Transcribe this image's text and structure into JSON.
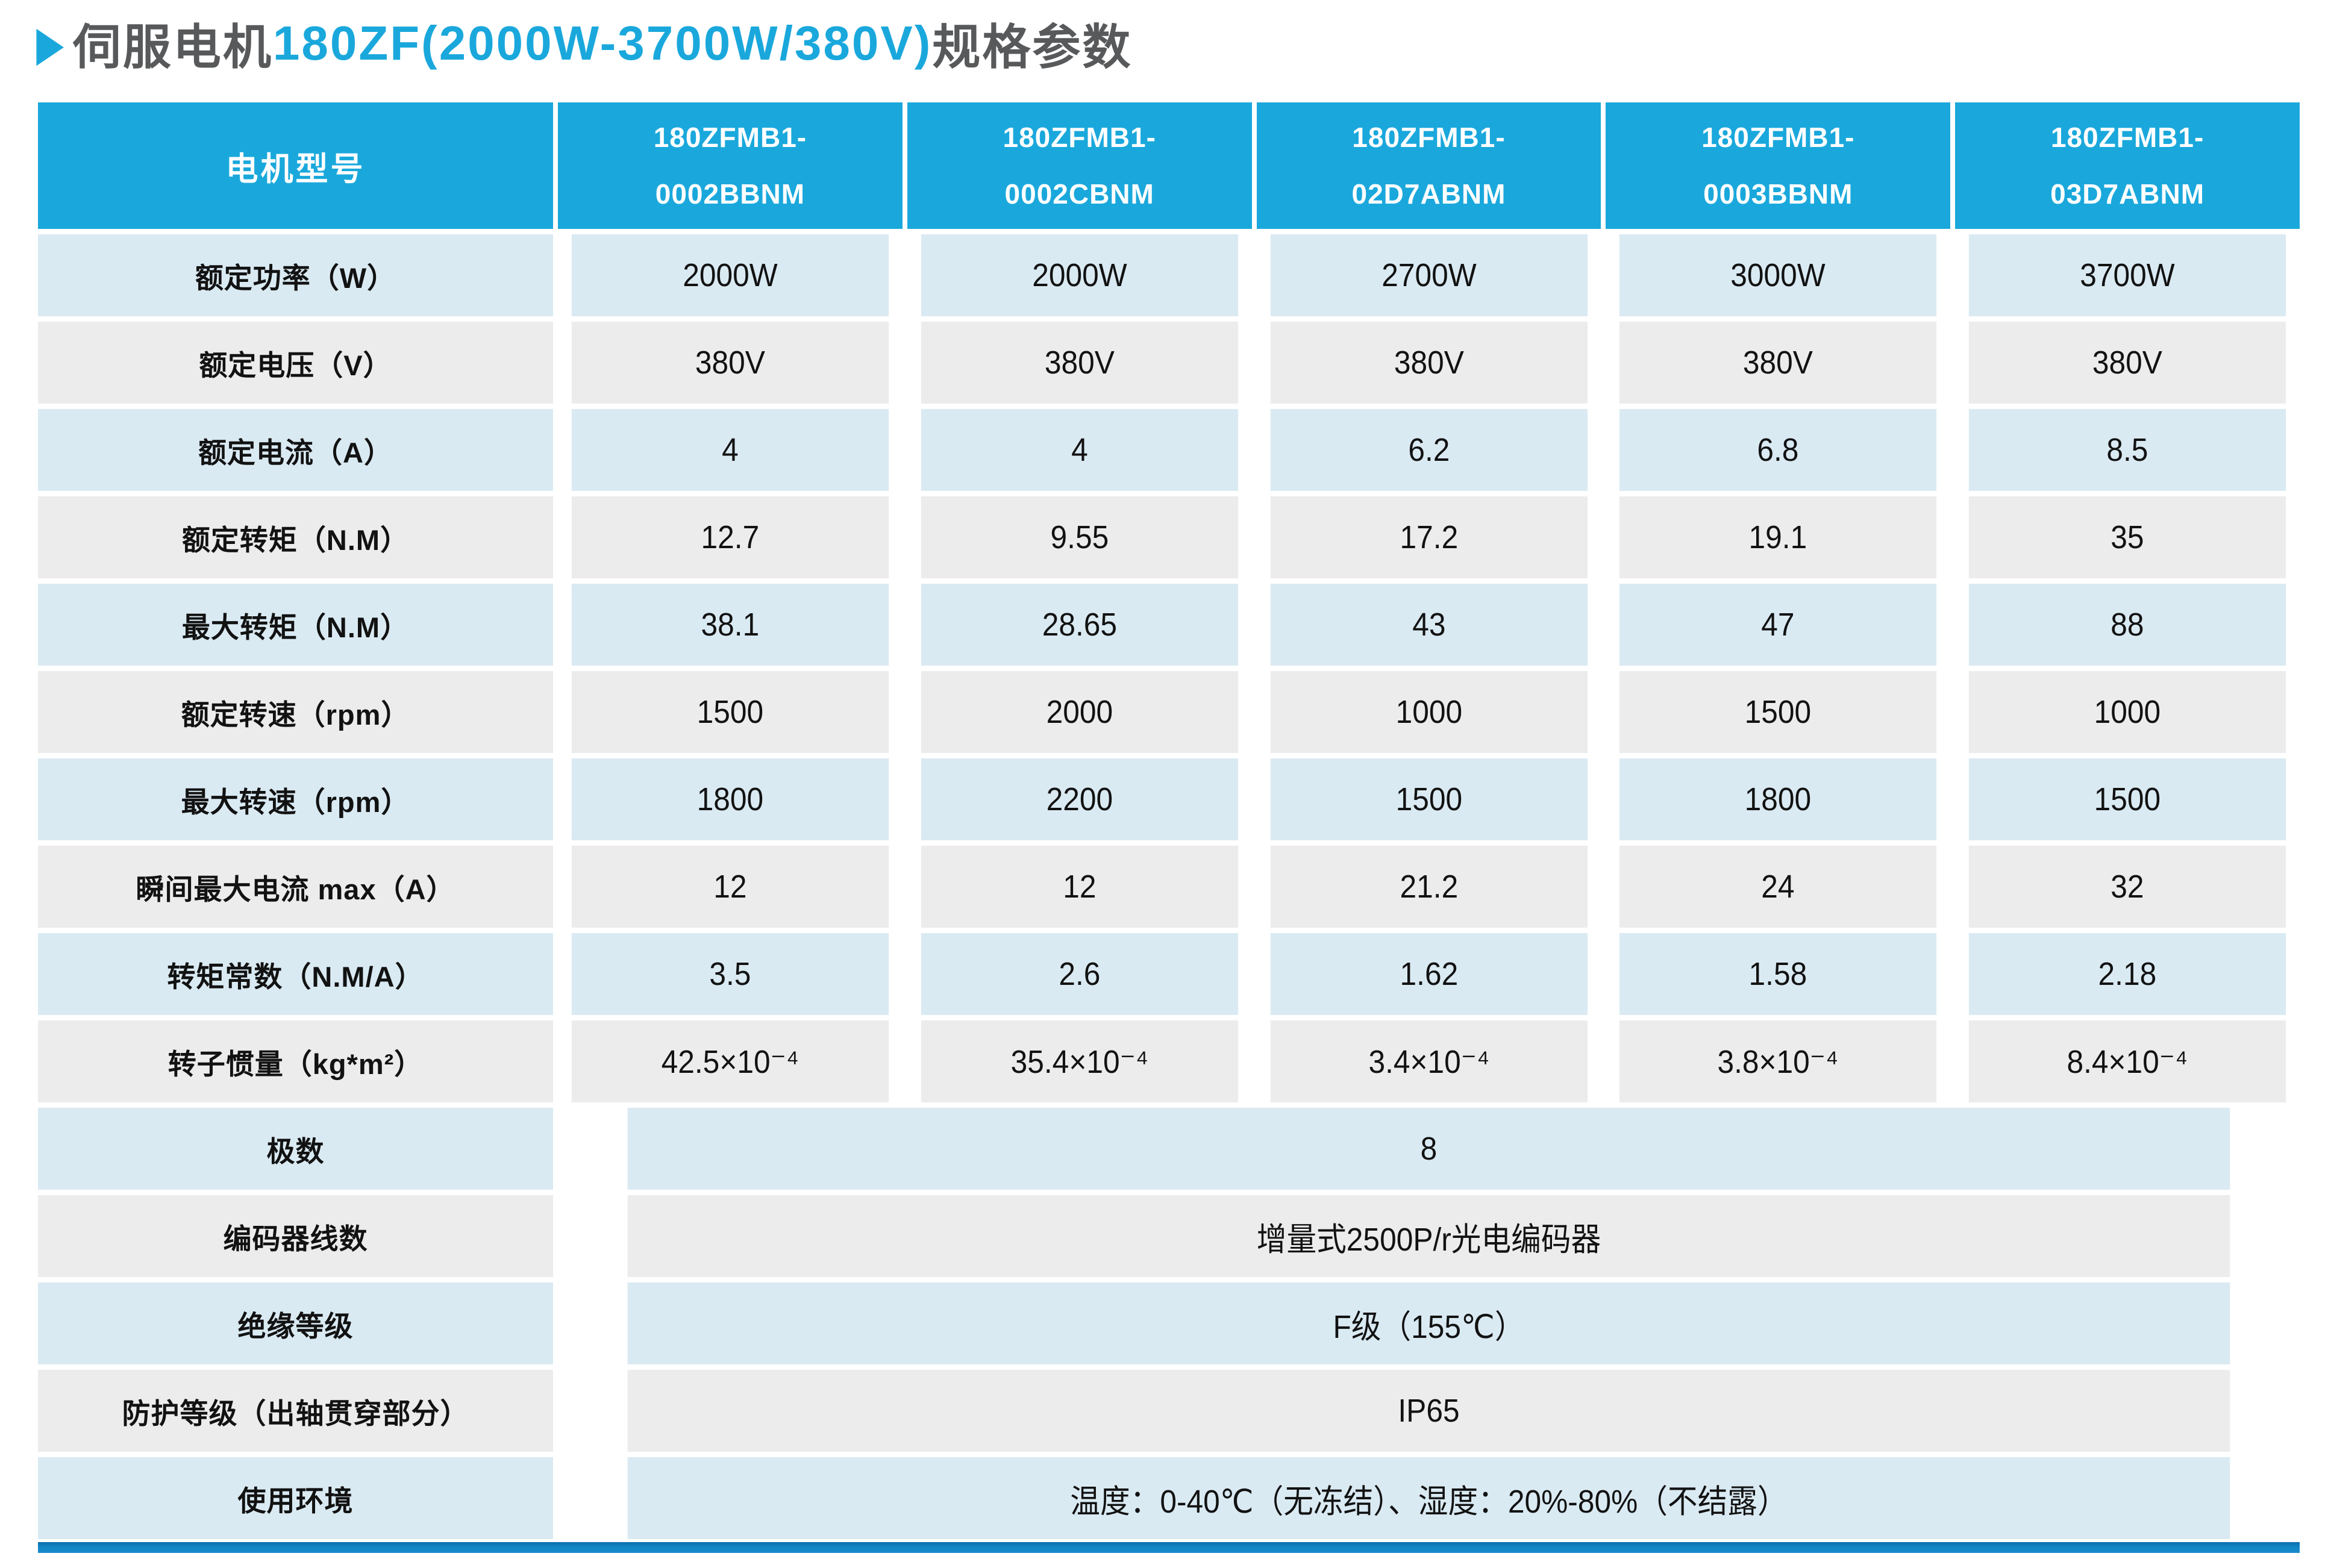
{
  "title": {
    "arrow": "▶",
    "prefix": "伺服电机",
    "highlight": "180ZF(2000W-3700W/380V)",
    "suffix": "规格参数"
  },
  "colors": {
    "accent_blue": "#1aa8dc",
    "row_light_blue": "#daeaf3",
    "row_light_gray": "#ececec",
    "title_gray": "#58595b",
    "bottom_bar_top": "#0a6fae",
    "bottom_bar_bottom": "#1b8dce"
  },
  "icons": {
    "title_arrow": "right-triangle-icon"
  },
  "table": {
    "corner_label": "电机型号",
    "models": [
      "180ZFMB1-\n0002BBNM",
      "180ZFMB1-\n0002CBNM",
      "180ZFMB1-\n02D7ABNM",
      "180ZFMB1-\n0003BBNM",
      "180ZFMB1-\n03D7ABNM"
    ],
    "rows": [
      {
        "label": "额定功率（W）",
        "values": [
          "2000W",
          "2000W",
          "2700W",
          "3000W",
          "3700W"
        ]
      },
      {
        "label": "额定电压（V）",
        "values": [
          "380V",
          "380V",
          "380V",
          "380V",
          "380V"
        ]
      },
      {
        "label": "额定电流（A）",
        "values": [
          "4",
          "4",
          "6.2",
          "6.8",
          "8.5"
        ]
      },
      {
        "label": "额定转矩（N.M）",
        "values": [
          "12.7",
          "9.55",
          "17.2",
          "19.1",
          "35"
        ]
      },
      {
        "label": "最大转矩（N.M）",
        "values": [
          "38.1",
          "28.65",
          "43",
          "47",
          "88"
        ]
      },
      {
        "label": "额定转速（rpm）",
        "values": [
          "1500",
          "2000",
          "1000",
          "1500",
          "1000"
        ]
      },
      {
        "label": "最大转速（rpm）",
        "values": [
          "1800",
          "2200",
          "1500",
          "1800",
          "1500"
        ]
      },
      {
        "label": "瞬间最大电流 max（A）",
        "values": [
          "12",
          "12",
          "21.2",
          "24",
          "32"
        ]
      },
      {
        "label": "转矩常数（N.M/A）",
        "values": [
          "3.5",
          "2.6",
          "1.62",
          "1.58",
          "2.18"
        ]
      },
      {
        "label": "转子惯量（kg*m²）",
        "values": [
          "42.5×10⁻⁴",
          "35.4×10⁻⁴",
          "3.4×10⁻⁴",
          "3.8×10⁻⁴",
          "8.4×10⁻⁴"
        ]
      }
    ],
    "merged_rows": [
      {
        "label": "极数",
        "value": "8"
      },
      {
        "label": "编码器线数",
        "value": "增量式2500P/r光电编码器"
      },
      {
        "label": "绝缘等级",
        "value": "F级（155℃）"
      },
      {
        "label": "防护等级（出轴贯穿部分）",
        "value": "IP65"
      },
      {
        "label": "使用环境",
        "value": "温度：0-40℃（无冻结）、湿度：20%-80%（不结露）"
      }
    ]
  }
}
